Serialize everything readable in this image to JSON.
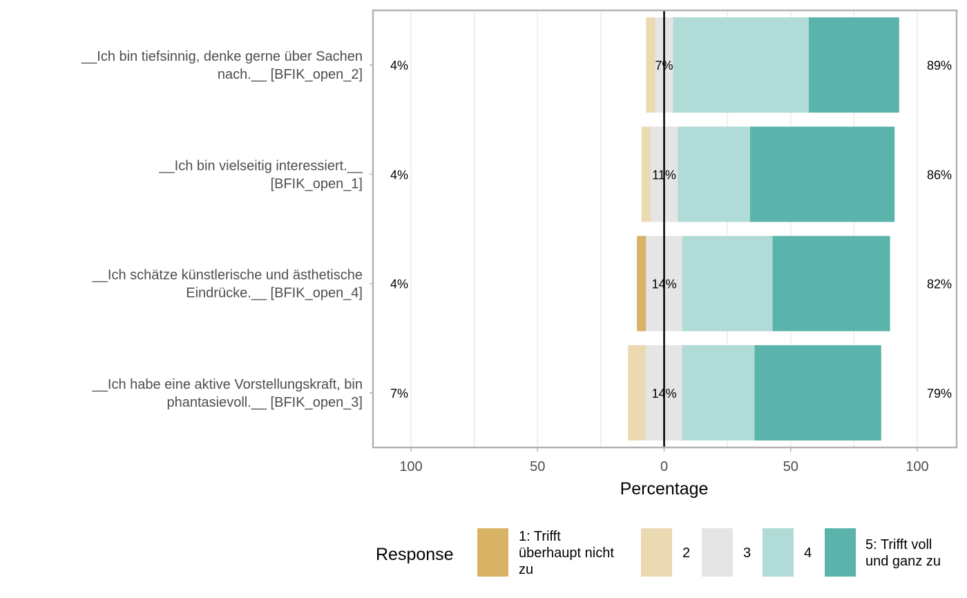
{
  "chart_data": {
    "type": "bar",
    "subtype": "diverging-stacked-likert",
    "xlabel": "Percentage",
    "xlim": [
      -100,
      100
    ],
    "xticks": [
      -100,
      -50,
      0,
      50,
      100
    ],
    "xtick_labels": [
      "100",
      "50",
      "0",
      "50",
      "100"
    ],
    "grid": true,
    "legend": {
      "title": "Response",
      "position": "bottom",
      "entries": [
        {
          "label_lines": [
            "1: Trifft",
            "überhaupt nicht",
            "zu"
          ],
          "color": "#D8B365"
        },
        {
          "label_lines": [
            "2"
          ],
          "color": "#EBD9B2"
        },
        {
          "label_lines": [
            "3"
          ],
          "color": "#E5E5E5"
        },
        {
          "label_lines": [
            "4"
          ],
          "color": "#B0DBD7"
        },
        {
          "label_lines": [
            "5: Trifft voll",
            "und ganz zu"
          ],
          "color": "#5AB4AC"
        }
      ]
    },
    "categories": [
      {
        "label_lines": [
          "__Ich bin tiefsinnig, denke gerne über Sachen",
          "nach.__ [BFIK_open_2]"
        ],
        "values": [
          0,
          3.6,
          7.1,
          53.6,
          35.7
        ],
        "low_label": "4%",
        "neutral_label": "7%",
        "high_label": "89%"
      },
      {
        "label_lines": [
          "__Ich bin vielseitig interessiert.__",
          "[BFIK_open_1]"
        ],
        "values": [
          0,
          3.6,
          10.7,
          28.6,
          57.1
        ],
        "low_label": "4%",
        "neutral_label": "11%",
        "high_label": "86%"
      },
      {
        "label_lines": [
          "__Ich schätze künstlerische und ästhetische",
          "Eindrücke.__ [BFIK_open_4]"
        ],
        "values": [
          3.6,
          0,
          14.3,
          35.7,
          46.4
        ],
        "low_label": "4%",
        "neutral_label": "14%",
        "high_label": "82%"
      },
      {
        "label_lines": [
          "__Ich habe eine aktive Vorstellungskraft, bin",
          "phantasievoll.__ [BFIK_open_3]"
        ],
        "values": [
          0,
          7.1,
          14.3,
          28.6,
          50.0
        ],
        "low_label": "7%",
        "neutral_label": "14%",
        "high_label": "79%"
      }
    ]
  }
}
